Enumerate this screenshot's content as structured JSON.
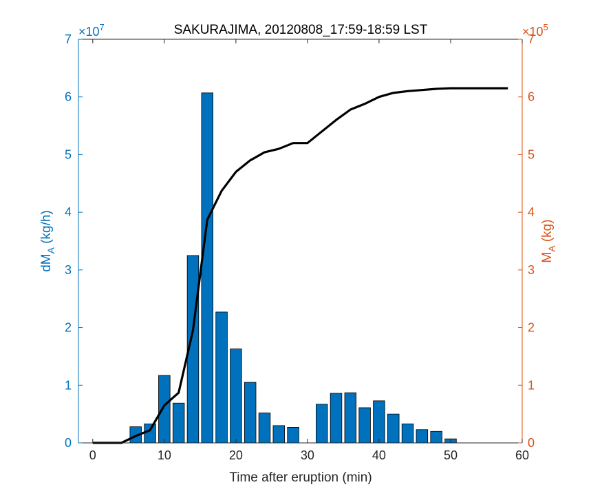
{
  "chart_data": {
    "type": "bar",
    "title": "SAKURAJIMA, 20120808_17:59-18:59 LST",
    "xlabel": "Time after eruption (min)",
    "xlim": [
      -2,
      60
    ],
    "xticks": [
      0,
      10,
      20,
      30,
      40,
      50,
      60
    ],
    "colors": {
      "left_axis": "#0072BD",
      "right_axis": "#D95319",
      "bars": "#0072BD",
      "line": "#000000",
      "axis": "#262626"
    },
    "left_axis": {
      "label_main": "dM",
      "label_sub": "A",
      "label_unit": "(kg/h)",
      "multiplier_base": "×10",
      "multiplier_exp": "7",
      "ylim": [
        0,
        7
      ],
      "ticks": [
        0,
        1,
        2,
        3,
        4,
        5,
        6,
        7
      ]
    },
    "right_axis": {
      "label_main": "M",
      "label_sub": "A",
      "label_unit": "(kg)",
      "multiplier_base": "×10",
      "multiplier_exp": "5",
      "ylim": [
        0,
        7
      ],
      "ticks": [
        0,
        1,
        2,
        3,
        4,
        5,
        6,
        7
      ]
    },
    "series": [
      {
        "kind": "bar",
        "axis": "left",
        "x": [
          0,
          2,
          4,
          6,
          8,
          10,
          12,
          14,
          16,
          18,
          20,
          22,
          24,
          26,
          28,
          30,
          32,
          34,
          36,
          38,
          40,
          42,
          44,
          46,
          48,
          50
        ],
        "values": [
          0,
          0,
          0,
          0.28,
          0.33,
          1.17,
          0.69,
          3.25,
          6.07,
          2.27,
          1.63,
          1.05,
          0.52,
          0.3,
          0.27,
          0,
          0.67,
          0.86,
          0.87,
          0.61,
          0.73,
          0.5,
          0.33,
          0.23,
          0.2,
          0.07
        ]
      },
      {
        "kind": "line",
        "axis": "right",
        "x": [
          0,
          4,
          6,
          8,
          10,
          12,
          14,
          16,
          18,
          20,
          22,
          24,
          26,
          28,
          30,
          32,
          34,
          36,
          38,
          40,
          42,
          44,
          46,
          48,
          50,
          52,
          54,
          56,
          58
        ],
        "values": [
          0,
          0,
          0.12,
          0.22,
          0.65,
          0.87,
          1.95,
          3.87,
          4.37,
          4.7,
          4.9,
          5.04,
          5.1,
          5.2,
          5.2,
          5.4,
          5.6,
          5.78,
          5.88,
          6.0,
          6.07,
          6.1,
          6.12,
          6.14,
          6.15,
          6.15,
          6.15,
          6.15,
          6.15
        ]
      }
    ]
  }
}
